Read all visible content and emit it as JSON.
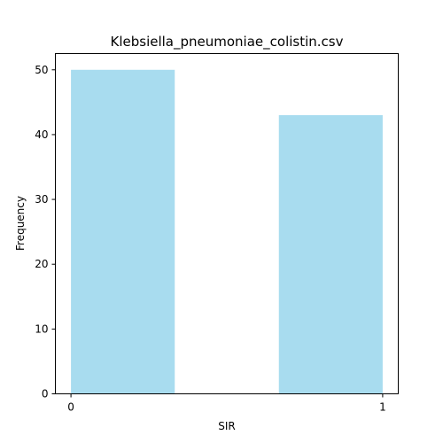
{
  "chart_data": {
    "type": "bar",
    "title": "Klebsiella_pneumoniae_colistin.csv",
    "xlabel": "SIR",
    "ylabel": "Frequency",
    "bars": [
      {
        "x_start": 0.0,
        "x_end": 0.333,
        "value": 50
      },
      {
        "x_start": 0.667,
        "x_end": 1.0,
        "value": 43
      }
    ],
    "xlim": [
      -0.05,
      1.05
    ],
    "ylim": [
      0,
      52.5
    ],
    "x_ticks": [
      0,
      1
    ],
    "y_ticks": [
      0,
      10,
      20,
      30,
      40,
      50
    ],
    "bar_color": "#a8dcef",
    "grid": false,
    "legend": "none"
  }
}
